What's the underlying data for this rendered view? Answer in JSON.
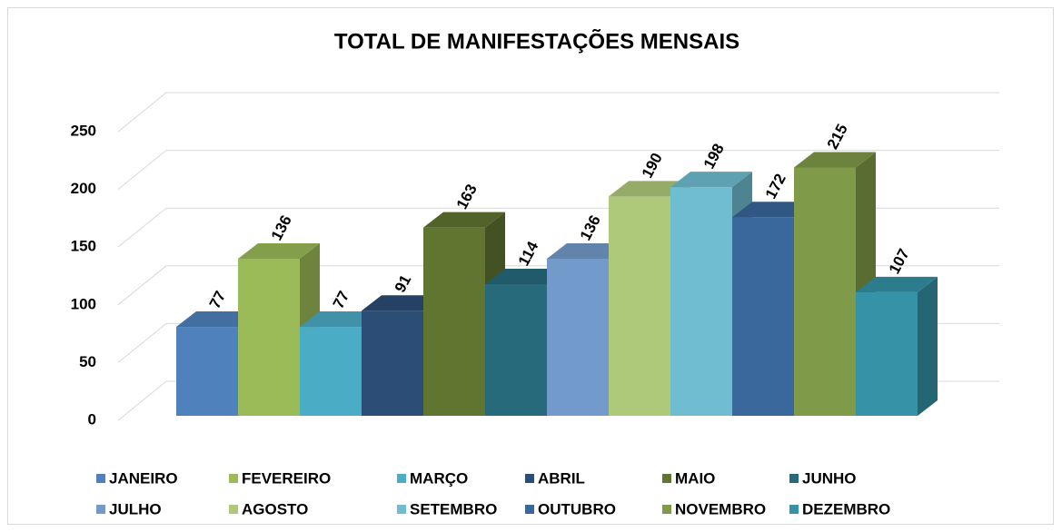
{
  "chart_data": {
    "type": "bar3d",
    "title": "TOTAL DE MANIFESTAÇÕES MENSAIS",
    "series": [
      {
        "name": "JANEIRO",
        "color": "#4f81bd",
        "values": [
          77
        ]
      },
      {
        "name": "FEVEREIRO",
        "color": "#9bbb59",
        "values": [
          136
        ]
      },
      {
        "name": "MARÇO",
        "color": "#4bacc6",
        "values": [
          77
        ]
      },
      {
        "name": "ABRIL",
        "color": "#2c4d75",
        "values": [
          91
        ]
      },
      {
        "name": "MAIO",
        "color": "#5f7530",
        "values": [
          163
        ]
      },
      {
        "name": "JUNHO",
        "color": "#276a7c",
        "values": [
          114
        ]
      },
      {
        "name": "JULHO",
        "color": "#729aca",
        "values": [
          136
        ]
      },
      {
        "name": "AGOSTO",
        "color": "#afc97a",
        "values": [
          190
        ]
      },
      {
        "name": "SETEMBRO",
        "color": "#6fbdd1",
        "values": [
          198
        ]
      },
      {
        "name": "OUTUBRO",
        "color": "#3a679c",
        "values": [
          172
        ]
      },
      {
        "name": "NOVEMBRO",
        "color": "#7f9a48",
        "values": [
          215
        ]
      },
      {
        "name": "DEZEMBRO",
        "color": "#3592a7",
        "values": [
          107
        ]
      }
    ],
    "ylim": [
      0,
      250
    ],
    "yticks": [
      0,
      50,
      100,
      150,
      200,
      250
    ],
    "grid": true,
    "legend": "bottom"
  }
}
